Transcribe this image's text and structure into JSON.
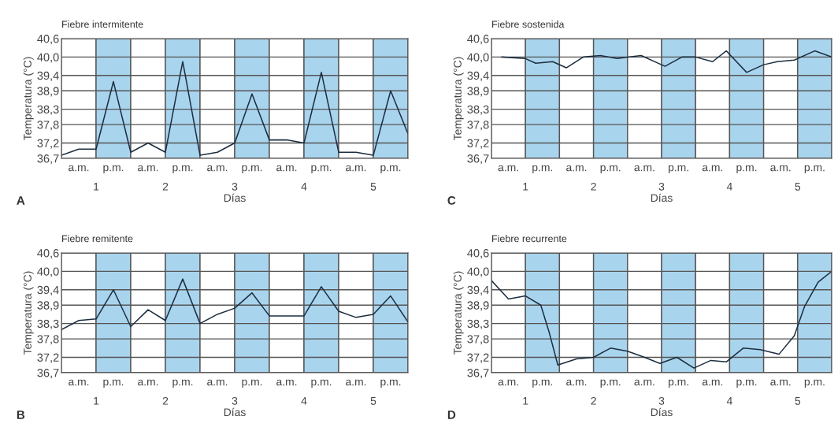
{
  "chart_data": [
    {
      "type": "line",
      "title": "Fiebre intermitente",
      "ylabel": "Temperatura (°C)",
      "xlabel": "Días",
      "annotations": [
        "A"
      ],
      "series": [
        {
          "color": "#1c2e3f",
          "x": [
            0.5,
            0.75,
            1,
            1.25,
            1.5,
            1.75,
            2,
            2.25,
            2.5,
            2.75,
            3,
            3.25,
            3.5,
            3.75,
            4,
            4.25,
            4.5,
            4.75,
            5,
            5.25,
            5.5
          ],
          "values": [
            36.8,
            37.0,
            37.0,
            39.2,
            36.9,
            37.2,
            36.9,
            39.85,
            36.8,
            36.9,
            37.2,
            38.8,
            37.3,
            37.3,
            37.2,
            39.5,
            36.9,
            36.9,
            36.8,
            38.9,
            37.5
          ]
        }
      ],
      "xlim": [
        0.5,
        5.5
      ],
      "xticks": [
        1,
        2,
        3,
        4,
        5
      ],
      "ylim": [
        36.7,
        40.6
      ],
      "yticks": [
        {
          "value": 36.7,
          "label": "36,7"
        },
        {
          "value": 37.2,
          "label": "37,2"
        },
        {
          "value": 37.8,
          "label": "37,8"
        },
        {
          "value": 38.3,
          "label": "38,3"
        },
        {
          "value": 38.9,
          "label": "38,9"
        },
        {
          "value": 39.4,
          "label": "39,4"
        },
        {
          "value": 40.0,
          "label": "40,0"
        },
        {
          "value": 40.6,
          "label": "40,6"
        }
      ],
      "bands": [
        {
          "axis": "x",
          "from": 0.5,
          "to": 1,
          "label": "a.m.",
          "color": "#ffffff"
        },
        {
          "axis": "x",
          "from": 1,
          "to": 1.5,
          "label": "p.m.",
          "color": "#a9d4ee"
        },
        {
          "axis": "x",
          "from": 1.5,
          "to": 2,
          "label": "a.m.",
          "color": "#ffffff"
        },
        {
          "axis": "x",
          "from": 2,
          "to": 2.5,
          "label": "p.m.",
          "color": "#a9d4ee"
        },
        {
          "axis": "x",
          "from": 2.5,
          "to": 3,
          "label": "a.m.",
          "color": "#ffffff"
        },
        {
          "axis": "x",
          "from": 3,
          "to": 3.5,
          "label": "p.m.",
          "color": "#a9d4ee"
        },
        {
          "axis": "x",
          "from": 3.5,
          "to": 4,
          "label": "a.m.",
          "color": "#ffffff"
        },
        {
          "axis": "x",
          "from": 4,
          "to": 4.5,
          "label": "p.m.",
          "color": "#a9d4ee"
        },
        {
          "axis": "x",
          "from": 4.5,
          "to": 5,
          "label": "a.m.",
          "color": "#ffffff"
        },
        {
          "axis": "x",
          "from": 5,
          "to": 5.5,
          "label": "p.m.",
          "color": "#a9d4ee"
        }
      ],
      "grid": "y"
    },
    {
      "type": "line",
      "title": "Fiebre sostenida",
      "ylabel": "Temperatura (°C)",
      "xlabel": "Días",
      "annotations": [
        "C"
      ],
      "series": [
        {
          "color": "#1c2e3f",
          "x": [
            0.65,
            1,
            1.15,
            1.4,
            1.6,
            1.85,
            2.1,
            2.35,
            2.5,
            2.7,
            3.05,
            3.3,
            3.5,
            3.75,
            3.95,
            4.25,
            4.5,
            4.7,
            4.95,
            5.25,
            5.5
          ],
          "values": [
            40.0,
            39.95,
            39.8,
            39.85,
            39.65,
            40.0,
            40.05,
            39.95,
            40.0,
            40.05,
            39.7,
            40.0,
            40.0,
            39.85,
            40.2,
            39.5,
            39.75,
            39.85,
            39.9,
            40.2,
            40.0
          ]
        }
      ],
      "xlim": [
        0.5,
        5.5
      ],
      "xticks": [
        1,
        2,
        3,
        4,
        5
      ],
      "ylim": [
        36.7,
        40.6
      ],
      "yticks": [
        {
          "value": 36.7,
          "label": "36,7"
        },
        {
          "value": 37.2,
          "label": "37,2"
        },
        {
          "value": 37.8,
          "label": "37,8"
        },
        {
          "value": 38.3,
          "label": "38,3"
        },
        {
          "value": 38.9,
          "label": "38,9"
        },
        {
          "value": 39.4,
          "label": "39,4"
        },
        {
          "value": 40.0,
          "label": "40,0"
        },
        {
          "value": 40.6,
          "label": "40,6"
        }
      ],
      "bands": [
        {
          "axis": "x",
          "from": 0.5,
          "to": 1,
          "label": "a.m.",
          "color": "#ffffff"
        },
        {
          "axis": "x",
          "from": 1,
          "to": 1.5,
          "label": "p.m.",
          "color": "#a9d4ee"
        },
        {
          "axis": "x",
          "from": 1.5,
          "to": 2,
          "label": "a.m.",
          "color": "#ffffff"
        },
        {
          "axis": "x",
          "from": 2,
          "to": 2.5,
          "label": "p.m.",
          "color": "#a9d4ee"
        },
        {
          "axis": "x",
          "from": 2.5,
          "to": 3,
          "label": "a.m.",
          "color": "#ffffff"
        },
        {
          "axis": "x",
          "from": 3,
          "to": 3.5,
          "label": "p.m.",
          "color": "#a9d4ee"
        },
        {
          "axis": "x",
          "from": 3.5,
          "to": 4,
          "label": "a.m.",
          "color": "#ffffff"
        },
        {
          "axis": "x",
          "from": 4,
          "to": 4.5,
          "label": "p.m.",
          "color": "#a9d4ee"
        },
        {
          "axis": "x",
          "from": 4.5,
          "to": 5,
          "label": "a.m.",
          "color": "#ffffff"
        },
        {
          "axis": "x",
          "from": 5,
          "to": 5.5,
          "label": "p.m.",
          "color": "#a9d4ee"
        }
      ],
      "grid": "y"
    },
    {
      "type": "line",
      "title": "Fiebre remitente",
      "ylabel": "Temperatura (°C)",
      "xlabel": "Días",
      "annotations": [
        "B"
      ],
      "series": [
        {
          "color": "#1c2e3f",
          "x": [
            0.5,
            0.75,
            1,
            1.25,
            1.5,
            1.75,
            2,
            2.25,
            2.5,
            2.75,
            3,
            3.25,
            3.5,
            3.75,
            4,
            4.25,
            4.5,
            4.75,
            5,
            5.25,
            5.5
          ],
          "values": [
            38.1,
            38.4,
            38.45,
            39.4,
            38.2,
            38.75,
            38.4,
            39.75,
            38.3,
            38.6,
            38.8,
            39.3,
            38.55,
            38.55,
            38.55,
            39.5,
            38.7,
            38.5,
            38.6,
            39.2,
            38.35
          ]
        }
      ],
      "xlim": [
        0.5,
        5.5
      ],
      "xticks": [
        1,
        2,
        3,
        4,
        5
      ],
      "ylim": [
        36.7,
        40.6
      ],
      "yticks": [
        {
          "value": 36.7,
          "label": "36,7"
        },
        {
          "value": 37.2,
          "label": "37,2"
        },
        {
          "value": 37.8,
          "label": "37,8"
        },
        {
          "value": 38.3,
          "label": "38,3"
        },
        {
          "value": 38.9,
          "label": "38,9"
        },
        {
          "value": 39.4,
          "label": "39,4"
        },
        {
          "value": 40.0,
          "label": "40,0"
        },
        {
          "value": 40.6,
          "label": "40,6"
        }
      ],
      "bands": [
        {
          "axis": "x",
          "from": 0.5,
          "to": 1,
          "label": "a.m.",
          "color": "#ffffff"
        },
        {
          "axis": "x",
          "from": 1,
          "to": 1.5,
          "label": "p.m.",
          "color": "#a9d4ee"
        },
        {
          "axis": "x",
          "from": 1.5,
          "to": 2,
          "label": "a.m.",
          "color": "#ffffff"
        },
        {
          "axis": "x",
          "from": 2,
          "to": 2.5,
          "label": "p.m.",
          "color": "#a9d4ee"
        },
        {
          "axis": "x",
          "from": 2.5,
          "to": 3,
          "label": "a.m.",
          "color": "#ffffff"
        },
        {
          "axis": "x",
          "from": 3,
          "to": 3.5,
          "label": "p.m.",
          "color": "#a9d4ee"
        },
        {
          "axis": "x",
          "from": 3.5,
          "to": 4,
          "label": "a.m.",
          "color": "#ffffff"
        },
        {
          "axis": "x",
          "from": 4,
          "to": 4.5,
          "label": "p.m.",
          "color": "#a9d4ee"
        },
        {
          "axis": "x",
          "from": 4.5,
          "to": 5,
          "label": "a.m.",
          "color": "#ffffff"
        },
        {
          "axis": "x",
          "from": 5,
          "to": 5.5,
          "label": "p.m.",
          "color": "#a9d4ee"
        }
      ],
      "grid": "y"
    },
    {
      "type": "line",
      "title": "Fiebre recurrente",
      "ylabel": "Temperatura (°C)",
      "xlabel": "Días",
      "annotations": [
        "D"
      ],
      "series": [
        {
          "color": "#1c2e3f",
          "x": [
            0.5,
            0.75,
            1,
            1.225,
            1.35,
            1.475,
            1.75,
            2,
            2.25,
            2.5,
            2.75,
            2.975,
            3.225,
            3.475,
            3.725,
            3.95,
            4.2,
            4.45,
            4.725,
            4.95,
            5.1,
            5.3,
            5.5
          ],
          "values": [
            39.7,
            39.1,
            39.2,
            38.9,
            38.0,
            36.95,
            37.15,
            37.2,
            37.5,
            37.4,
            37.2,
            37.0,
            37.2,
            36.85,
            37.1,
            37.05,
            37.5,
            37.45,
            37.3,
            37.9,
            38.85,
            39.65,
            40.0
          ]
        }
      ],
      "xlim": [
        0.5,
        5.5
      ],
      "xticks": [
        1,
        2,
        3,
        4,
        5
      ],
      "ylim": [
        36.7,
        40.6
      ],
      "yticks": [
        {
          "value": 36.7,
          "label": "36,7"
        },
        {
          "value": 37.2,
          "label": "37,2"
        },
        {
          "value": 37.8,
          "label": "37,8"
        },
        {
          "value": 38.3,
          "label": "38,3"
        },
        {
          "value": 38.9,
          "label": "38,9"
        },
        {
          "value": 39.4,
          "label": "39,4"
        },
        {
          "value": 40.0,
          "label": "40,0"
        },
        {
          "value": 40.6,
          "label": "40,6"
        }
      ],
      "bands": [
        {
          "axis": "x",
          "from": 0.5,
          "to": 1,
          "label": "a.m.",
          "color": "#ffffff"
        },
        {
          "axis": "x",
          "from": 1,
          "to": 1.5,
          "label": "p.m.",
          "color": "#a9d4ee"
        },
        {
          "axis": "x",
          "from": 1.5,
          "to": 2,
          "label": "a.m.",
          "color": "#ffffff"
        },
        {
          "axis": "x",
          "from": 2,
          "to": 2.5,
          "label": "p.m.",
          "color": "#a9d4ee"
        },
        {
          "axis": "x",
          "from": 2.5,
          "to": 3,
          "label": "a.m.",
          "color": "#ffffff"
        },
        {
          "axis": "x",
          "from": 3,
          "to": 3.5,
          "label": "p.m.",
          "color": "#a9d4ee"
        },
        {
          "axis": "x",
          "from": 3.5,
          "to": 4,
          "label": "a.m.",
          "color": "#ffffff"
        },
        {
          "axis": "x",
          "from": 4,
          "to": 4.5,
          "label": "p.m.",
          "color": "#a9d4ee"
        },
        {
          "axis": "x",
          "from": 4.5,
          "to": 5,
          "label": "a.m.",
          "color": "#ffffff"
        },
        {
          "axis": "x",
          "from": 5,
          "to": 5.5,
          "label": "p.m.",
          "color": "#a9d4ee"
        }
      ],
      "grid": "y"
    }
  ]
}
